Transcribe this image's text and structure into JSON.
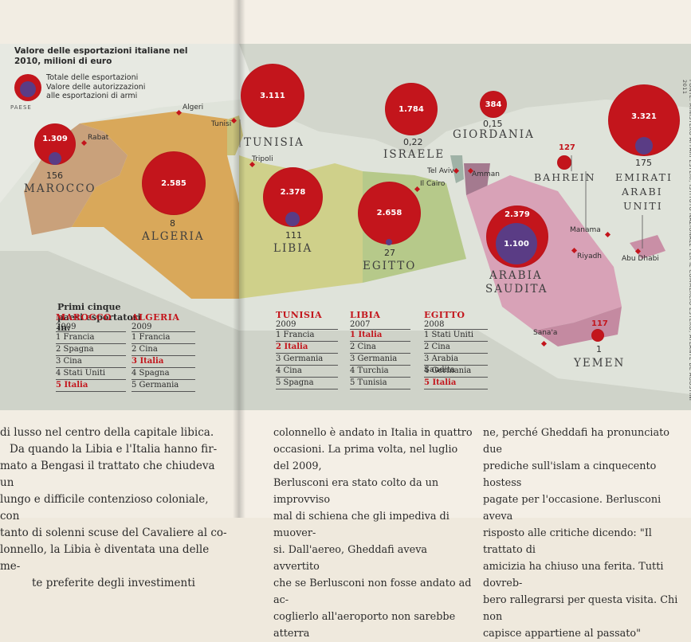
{
  "legend": {
    "title": "Valore delle esportazioni italiane nel 2010, milioni di euro",
    "item_total": "Totale delle esportazioni",
    "item_arms": "Valore delle autorizzazioni alle esportazioni di armi",
    "paese": "PAESE"
  },
  "countries": {
    "marocco": {
      "name": "MAROCCO",
      "total": "1.309",
      "arms": "156"
    },
    "algeria": {
      "name": "ALGERIA",
      "total": "2.585",
      "arms": "8"
    },
    "tunisia": {
      "name": "TUNISIA",
      "total": "3.111"
    },
    "libia": {
      "name": "LIBIA",
      "total": "2.378",
      "arms": "111"
    },
    "egitto": {
      "name": "EGITTO",
      "total": "2.658",
      "arms": "27"
    },
    "israele": {
      "name": "ISRAELE",
      "total": "1.784",
      "arms": "0,22"
    },
    "giordania": {
      "name": "GIORDANIA",
      "total": "384",
      "arms": "0,15"
    },
    "bahrein": {
      "name": "BAHREIN",
      "total": "127"
    },
    "emirati": {
      "name1": "EMIRATI",
      "name2": "ARABI",
      "name3": "UNITI",
      "total": "3.321",
      "arms": "175"
    },
    "arabia": {
      "name1": "ARABIA",
      "name2": "SAUDITA",
      "total": "2.379",
      "arms": "1.100"
    },
    "yemen": {
      "name": "YEMEN",
      "total": "117",
      "arms": "1"
    }
  },
  "cities": {
    "algeri": "Algeri",
    "tunisi": "Tunisi",
    "rabat": "Rabat",
    "tripoli": "Tripoli",
    "tel_aviv": "Tel Aviv",
    "amman": "Amman",
    "il_cairo": "Il Cairo",
    "manama": "Manama",
    "riyadh": "Riyadh",
    "abu_dhabi": "Abu Dhabi",
    "sanaa": "Sana'a"
  },
  "source": "FONTE: MINISTERO AFFARI ESTERI, ISTITUTO NAZIONALE PER IL COMMERCIO ESTERO, ATLANTE DE AGOSTINI 2011",
  "tables": {
    "title": "Primi cinque paesi esportatori in:",
    "marocco": {
      "head": "MAROCCO",
      "year": "2009",
      "rows": [
        "1 Francia",
        "2 Spagna",
        "3 Cina",
        "4 Stati Uniti",
        "5 Italia"
      ]
    },
    "algeria": {
      "head": "ALGERIA",
      "year": "2009",
      "rows": [
        "1 Francia",
        "2 Cina",
        "3 Italia",
        "4 Spagna",
        "5 Germania"
      ]
    },
    "tunisia": {
      "head": "TUNISIA",
      "year": "2009",
      "rows": [
        "1 Francia",
        "2 Italia",
        "3 Germania",
        "4 Cina",
        "5 Spagna"
      ]
    },
    "libia": {
      "head": "LIBIA",
      "year": "2007",
      "rows": [
        "1 Italia",
        "2 Cina",
        "3 Germania",
        "4 Turchia",
        "5 Tunisia"
      ]
    },
    "egitto": {
      "head": "EGITTO",
      "year": "2008",
      "rows": [
        "1 Stati Uniti",
        "2 Cina",
        "3 Arabia Saudita",
        "4 Germania",
        "5 Italia"
      ]
    }
  },
  "article": {
    "left": [
      "di lusso nel centro della capitale libica.",
      "Da quando la Libia e l'Italia hanno fir-",
      "mato a Bengasi il trattato che chiudeva un",
      "lungo e difficile contenzioso coloniale, con",
      "tanto di solenni scuse del Cavaliere al co-",
      "lonnello, la Libia è diventata una delle me-",
      "te preferite degli investimenti"
    ],
    "middle": [
      "colonnello è andato in Italia in quattro",
      "occasioni. La prima volta, nel luglio del 2009,",
      "Berlusconi era stato colto da un improvviso",
      "mal di schiena che gli impediva di muover-",
      "si. Dall'aereo, Gheddafi aveva avvertito",
      "che se Berlusconi non fosse andato ad ac-",
      "coglierlo all'aeroporto non sarebbe atterra"
    ],
    "right": [
      "ne, perché Gheddafi ha pronunciato due",
      "prediche sull'islam a cinquecento hostess",
      "pagate per l'occasione. Berlusconi aveva",
      "risposto alle critiche dicendo: \"Il trattato di",
      "amicizia ha chiuso una ferita. Tutti dovreb-",
      "bero rallegrarsi per questa visita. Chi non",
      "capisce appartiene al passato\""
    ]
  }
}
